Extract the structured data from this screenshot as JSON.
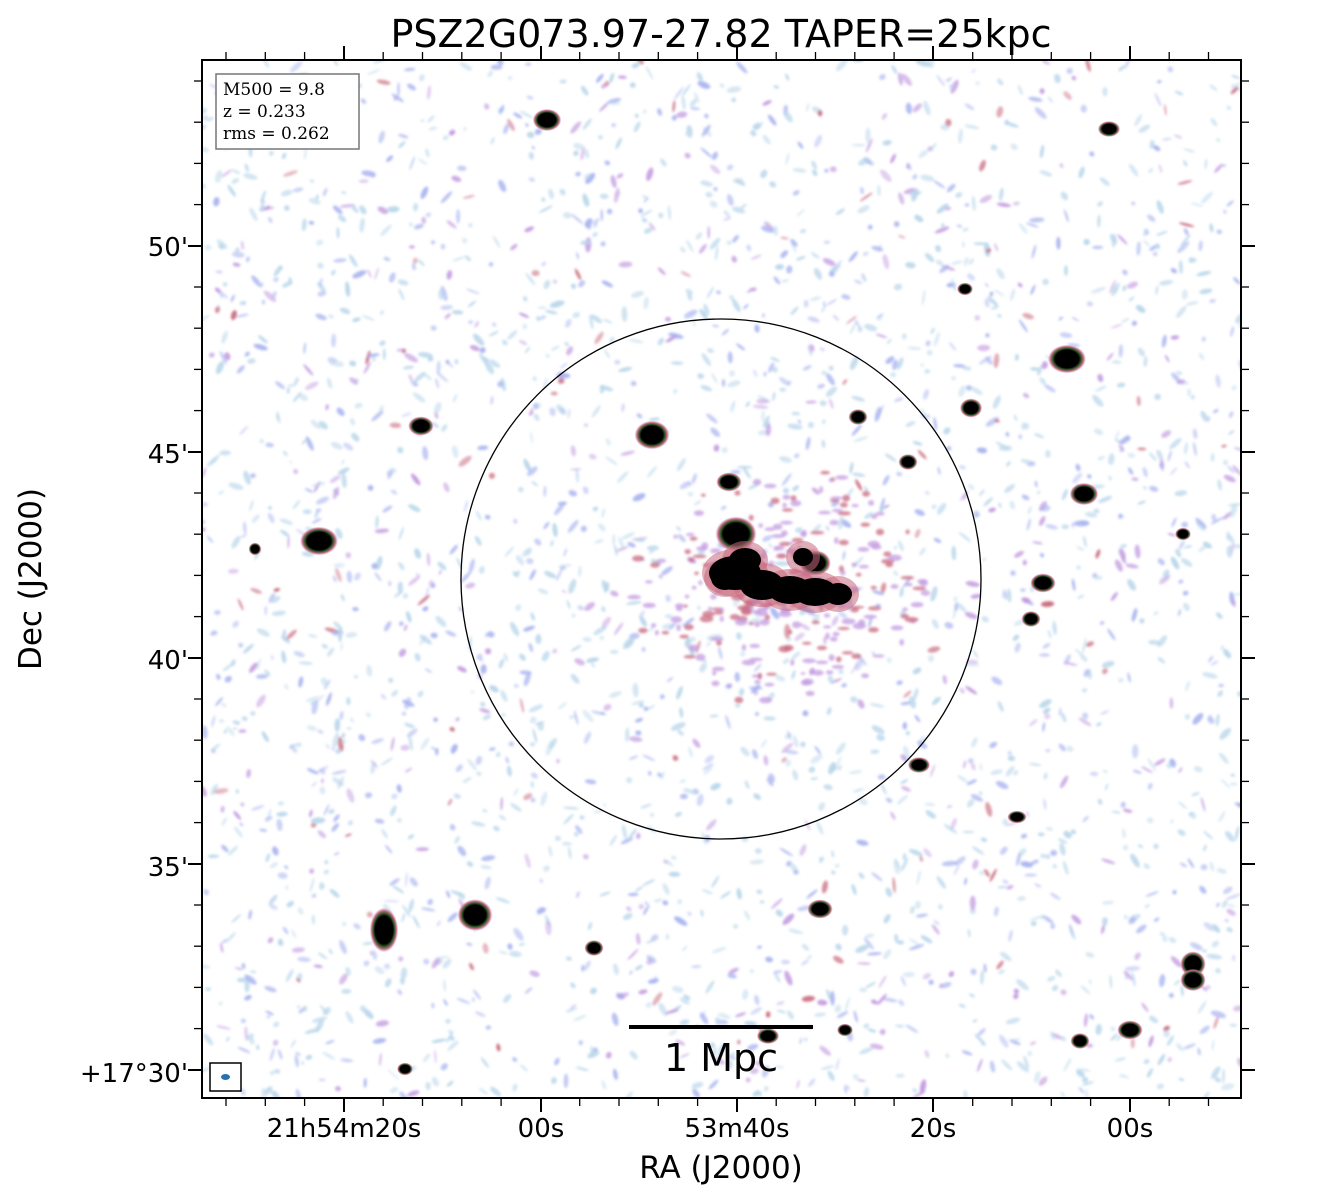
{
  "title": "PSZ2G073.97-27.82 TAPER=25kpc",
  "axes": {
    "xlabel": "RA (J2000)",
    "ylabel": "Dec (J2000)",
    "x_ticks": [
      "21h54m20s",
      "00s",
      "53m40s",
      "20s",
      "00s"
    ],
    "y_ticks": [
      "50'",
      "45'",
      "40'",
      "35'",
      "+17°30'"
    ]
  },
  "info_box": {
    "lines": [
      "M500 = 9.8",
      "z = 0.233",
      "rms = 0.262"
    ]
  },
  "scale_bar": {
    "label": "1 Mpc"
  },
  "colors": {
    "background": "#ffffff",
    "noise_light": "#b9d6ea",
    "noise_blue": "#a9b4f0",
    "noise_violet": "#c39be0",
    "noise_red": "#c96a7d",
    "noise_green": "#4d7a3a",
    "source_core": "#000000"
  }
}
